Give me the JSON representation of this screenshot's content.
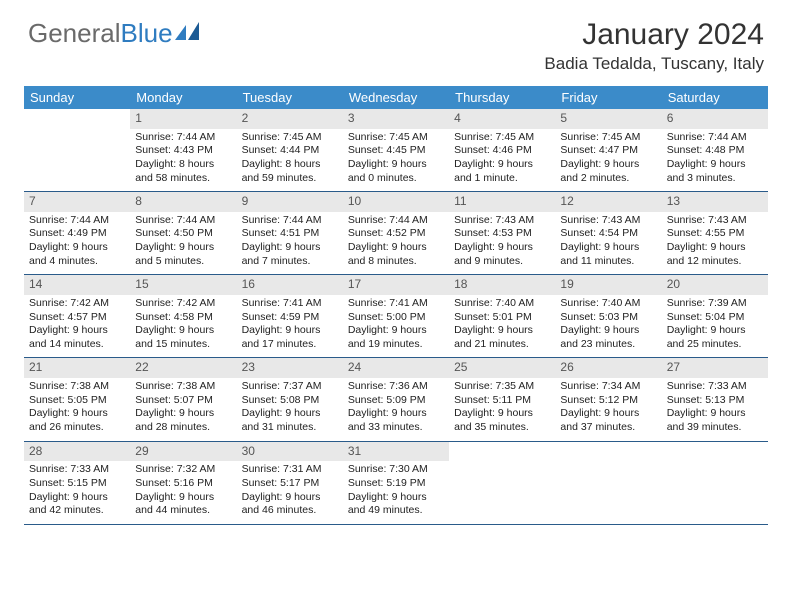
{
  "logo": {
    "text_gray": "General",
    "text_blue": "Blue"
  },
  "header": {
    "month_title": "January 2024",
    "location": "Badia Tedalda, Tuscany, Italy"
  },
  "colors": {
    "header_bg": "#3b8bc9",
    "header_text": "#ffffff",
    "daynum_bg": "#e8e8e8",
    "week_border": "#2a5b8a",
    "text": "#333333",
    "logo_gray": "#6a6a6a",
    "logo_blue": "#2f7cc0"
  },
  "day_names": [
    "Sunday",
    "Monday",
    "Tuesday",
    "Wednesday",
    "Thursday",
    "Friday",
    "Saturday"
  ],
  "weeks": [
    [
      null,
      {
        "n": "1",
        "sr": "Sunrise: 7:44 AM",
        "ss": "Sunset: 4:43 PM",
        "d1": "Daylight: 8 hours",
        "d2": "and 58 minutes."
      },
      {
        "n": "2",
        "sr": "Sunrise: 7:45 AM",
        "ss": "Sunset: 4:44 PM",
        "d1": "Daylight: 8 hours",
        "d2": "and 59 minutes."
      },
      {
        "n": "3",
        "sr": "Sunrise: 7:45 AM",
        "ss": "Sunset: 4:45 PM",
        "d1": "Daylight: 9 hours",
        "d2": "and 0 minutes."
      },
      {
        "n": "4",
        "sr": "Sunrise: 7:45 AM",
        "ss": "Sunset: 4:46 PM",
        "d1": "Daylight: 9 hours",
        "d2": "and 1 minute."
      },
      {
        "n": "5",
        "sr": "Sunrise: 7:45 AM",
        "ss": "Sunset: 4:47 PM",
        "d1": "Daylight: 9 hours",
        "d2": "and 2 minutes."
      },
      {
        "n": "6",
        "sr": "Sunrise: 7:44 AM",
        "ss": "Sunset: 4:48 PM",
        "d1": "Daylight: 9 hours",
        "d2": "and 3 minutes."
      }
    ],
    [
      {
        "n": "7",
        "sr": "Sunrise: 7:44 AM",
        "ss": "Sunset: 4:49 PM",
        "d1": "Daylight: 9 hours",
        "d2": "and 4 minutes."
      },
      {
        "n": "8",
        "sr": "Sunrise: 7:44 AM",
        "ss": "Sunset: 4:50 PM",
        "d1": "Daylight: 9 hours",
        "d2": "and 5 minutes."
      },
      {
        "n": "9",
        "sr": "Sunrise: 7:44 AM",
        "ss": "Sunset: 4:51 PM",
        "d1": "Daylight: 9 hours",
        "d2": "and 7 minutes."
      },
      {
        "n": "10",
        "sr": "Sunrise: 7:44 AM",
        "ss": "Sunset: 4:52 PM",
        "d1": "Daylight: 9 hours",
        "d2": "and 8 minutes."
      },
      {
        "n": "11",
        "sr": "Sunrise: 7:43 AM",
        "ss": "Sunset: 4:53 PM",
        "d1": "Daylight: 9 hours",
        "d2": "and 9 minutes."
      },
      {
        "n": "12",
        "sr": "Sunrise: 7:43 AM",
        "ss": "Sunset: 4:54 PM",
        "d1": "Daylight: 9 hours",
        "d2": "and 11 minutes."
      },
      {
        "n": "13",
        "sr": "Sunrise: 7:43 AM",
        "ss": "Sunset: 4:55 PM",
        "d1": "Daylight: 9 hours",
        "d2": "and 12 minutes."
      }
    ],
    [
      {
        "n": "14",
        "sr": "Sunrise: 7:42 AM",
        "ss": "Sunset: 4:57 PM",
        "d1": "Daylight: 9 hours",
        "d2": "and 14 minutes."
      },
      {
        "n": "15",
        "sr": "Sunrise: 7:42 AM",
        "ss": "Sunset: 4:58 PM",
        "d1": "Daylight: 9 hours",
        "d2": "and 15 minutes."
      },
      {
        "n": "16",
        "sr": "Sunrise: 7:41 AM",
        "ss": "Sunset: 4:59 PM",
        "d1": "Daylight: 9 hours",
        "d2": "and 17 minutes."
      },
      {
        "n": "17",
        "sr": "Sunrise: 7:41 AM",
        "ss": "Sunset: 5:00 PM",
        "d1": "Daylight: 9 hours",
        "d2": "and 19 minutes."
      },
      {
        "n": "18",
        "sr": "Sunrise: 7:40 AM",
        "ss": "Sunset: 5:01 PM",
        "d1": "Daylight: 9 hours",
        "d2": "and 21 minutes."
      },
      {
        "n": "19",
        "sr": "Sunrise: 7:40 AM",
        "ss": "Sunset: 5:03 PM",
        "d1": "Daylight: 9 hours",
        "d2": "and 23 minutes."
      },
      {
        "n": "20",
        "sr": "Sunrise: 7:39 AM",
        "ss": "Sunset: 5:04 PM",
        "d1": "Daylight: 9 hours",
        "d2": "and 25 minutes."
      }
    ],
    [
      {
        "n": "21",
        "sr": "Sunrise: 7:38 AM",
        "ss": "Sunset: 5:05 PM",
        "d1": "Daylight: 9 hours",
        "d2": "and 26 minutes."
      },
      {
        "n": "22",
        "sr": "Sunrise: 7:38 AM",
        "ss": "Sunset: 5:07 PM",
        "d1": "Daylight: 9 hours",
        "d2": "and 28 minutes."
      },
      {
        "n": "23",
        "sr": "Sunrise: 7:37 AM",
        "ss": "Sunset: 5:08 PM",
        "d1": "Daylight: 9 hours",
        "d2": "and 31 minutes."
      },
      {
        "n": "24",
        "sr": "Sunrise: 7:36 AM",
        "ss": "Sunset: 5:09 PM",
        "d1": "Daylight: 9 hours",
        "d2": "and 33 minutes."
      },
      {
        "n": "25",
        "sr": "Sunrise: 7:35 AM",
        "ss": "Sunset: 5:11 PM",
        "d1": "Daylight: 9 hours",
        "d2": "and 35 minutes."
      },
      {
        "n": "26",
        "sr": "Sunrise: 7:34 AM",
        "ss": "Sunset: 5:12 PM",
        "d1": "Daylight: 9 hours",
        "d2": "and 37 minutes."
      },
      {
        "n": "27",
        "sr": "Sunrise: 7:33 AM",
        "ss": "Sunset: 5:13 PM",
        "d1": "Daylight: 9 hours",
        "d2": "and 39 minutes."
      }
    ],
    [
      {
        "n": "28",
        "sr": "Sunrise: 7:33 AM",
        "ss": "Sunset: 5:15 PM",
        "d1": "Daylight: 9 hours",
        "d2": "and 42 minutes."
      },
      {
        "n": "29",
        "sr": "Sunrise: 7:32 AM",
        "ss": "Sunset: 5:16 PM",
        "d1": "Daylight: 9 hours",
        "d2": "and 44 minutes."
      },
      {
        "n": "30",
        "sr": "Sunrise: 7:31 AM",
        "ss": "Sunset: 5:17 PM",
        "d1": "Daylight: 9 hours",
        "d2": "and 46 minutes."
      },
      {
        "n": "31",
        "sr": "Sunrise: 7:30 AM",
        "ss": "Sunset: 5:19 PM",
        "d1": "Daylight: 9 hours",
        "d2": "and 49 minutes."
      },
      null,
      null,
      null
    ]
  ]
}
